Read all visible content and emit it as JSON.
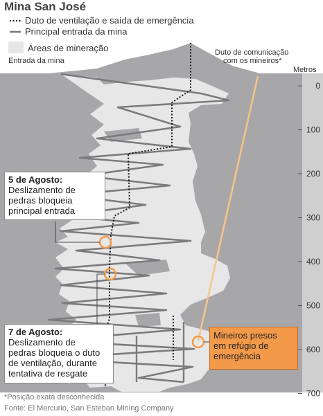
{
  "title": "Mina San José",
  "legend": {
    "ventilation": "Duto de ventilação e saída de emergência",
    "main_entrance": "Principal entrada da mina",
    "mining_areas": "Áreas de mineração"
  },
  "labels": {
    "entrance": "Entrada da mina",
    "comm_duct_line1": "Duto de comunicação",
    "comm_duct_line2": "com os mineiros*",
    "depth_unit": "Metros"
  },
  "depth_ticks": [
    "0",
    "100",
    "200",
    "300",
    "400",
    "500",
    "600",
    "700"
  ],
  "events": {
    "aug5": {
      "title": "5 de Agosto:",
      "line1": "Deslizamento de",
      "line2": "pedras bloqueia",
      "line3": "principal entrada"
    },
    "aug7": {
      "title": "7 de Agosto:",
      "line1": "Deslizamento de",
      "line2": "pedras bloqueia o duto",
      "line3": "de ventilação, durante",
      "line4": "tentativa de resgate"
    }
  },
  "trapped": {
    "line1": "Mineiros presos",
    "line2": "em refúgio de",
    "line3": "emergência"
  },
  "footnote": "*Posição exata desconhecida",
  "source": "Fonte: El Mercurio, San Esteban Mining Company",
  "colors": {
    "rock": "#a7a7a9",
    "mining_area": "#e7e7e8",
    "tunnel": "#7b7b7d",
    "highlight": "#f39a4a"
  }
}
